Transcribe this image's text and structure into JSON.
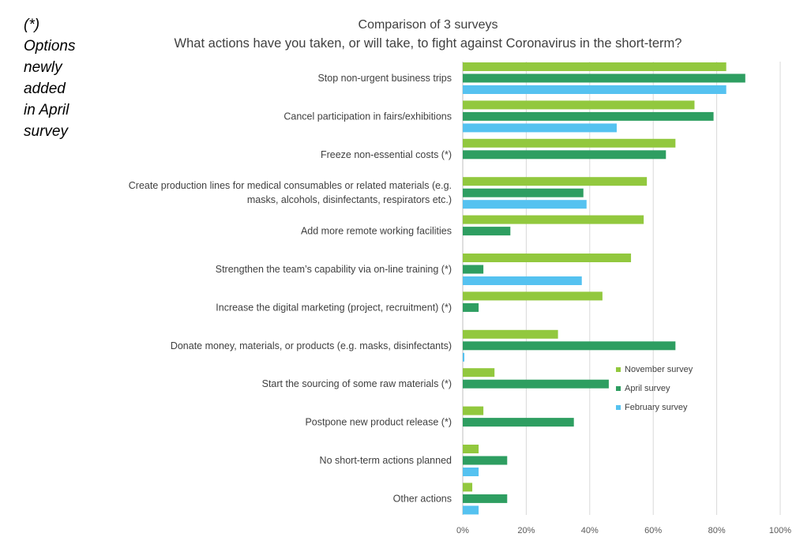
{
  "side_note": [
    "(*)",
    "Options",
    "newly",
    "added",
    "in April",
    "survey"
  ],
  "chart_data": {
    "type": "bar",
    "orientation": "horizontal",
    "title": "Comparison of 3 surveys",
    "subtitle": "What actions have you taken, or will take, to fight against Coronavirus in the short-term?",
    "categories": [
      [
        "Stop non-urgent business trips"
      ],
      [
        "Cancel participation in fairs/exhibitions"
      ],
      [
        "Freeze non-essential costs (*)"
      ],
      [
        "Create production lines for medical consumables or related materials (e.g.",
        "masks, alcohols, disinfectants, respirators etc.)"
      ],
      [
        "Add more remote working facilities"
      ],
      [
        "Strengthen the team’s capability via on-line training (*)"
      ],
      [
        "Increase the digital marketing (project, recruitment) (*)"
      ],
      [
        "Donate money, materials, or products (e.g. masks, disinfectants)"
      ],
      [
        "Start the sourcing of some raw materials (*)"
      ],
      [
        "Postpone new product release (*)"
      ],
      [
        "No short-term actions planned"
      ],
      [
        "Other actions"
      ]
    ],
    "series": [
      {
        "name": "November survey",
        "color": "#92c83e",
        "values": [
          83,
          73,
          67,
          58,
          57,
          53,
          44,
          30,
          10,
          6.5,
          5,
          3
        ]
      },
      {
        "name": "April survey",
        "color": "#2e9e61",
        "values": [
          89,
          79,
          64,
          38,
          15,
          6.5,
          5,
          67,
          46,
          35,
          14,
          14
        ]
      },
      {
        "name": "February survey",
        "color": "#55c2f0",
        "values": [
          83,
          48.5,
          null,
          39,
          null,
          37.5,
          null,
          0.5,
          null,
          null,
          5,
          5
        ]
      }
    ],
    "xlim": [
      0,
      100
    ],
    "xticks": [
      "0%",
      "20%",
      "40%",
      "60%",
      "80%",
      "100%"
    ],
    "grid": true,
    "legend_position": "right-middle"
  }
}
